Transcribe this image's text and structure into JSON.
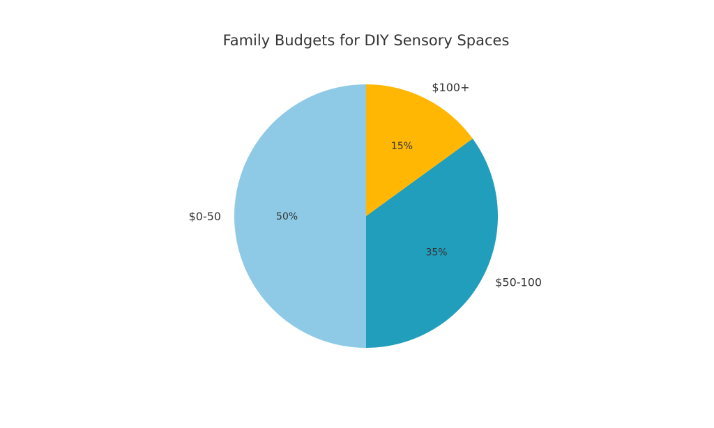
{
  "chart_data": {
    "type": "pie",
    "title": "Family Budgets for DIY Sensory Spaces",
    "categories": [
      "$0-50",
      "$50-100",
      "$100+"
    ],
    "values": [
      50,
      35,
      15
    ],
    "value_labels": [
      "50%",
      "35%",
      "15%"
    ],
    "colors": [
      "#8ecae6",
      "#219ebc",
      "#ffb703"
    ],
    "start_angle": 90,
    "direction": "counterclockwise"
  }
}
